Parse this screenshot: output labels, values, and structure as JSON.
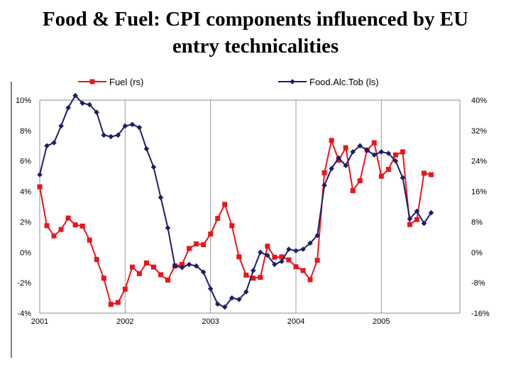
{
  "title": {
    "line1": "Food & Fuel: CPI components influenced by EU",
    "line2": "entry technicalities"
  },
  "chart_data": {
    "type": "line",
    "legend": {
      "placement": "top",
      "entries": [
        "Fuel (rs)",
        "Food.Alc.Tob (ls)"
      ]
    },
    "x_ticks": [
      "2001",
      "2002",
      "2003",
      "2004",
      "2005"
    ],
    "x_range": [
      2001.0,
      2005.92
    ],
    "left_axis": {
      "label": "",
      "range": [
        -4,
        10
      ],
      "ticks": [
        "-4%",
        "-2%",
        "0%",
        "2%",
        "4%",
        "6%",
        "8%",
        "10%"
      ]
    },
    "right_axis": {
      "label": "",
      "range": [
        -16,
        40
      ],
      "ticks": [
        "-16%",
        "-8%",
        "0%",
        "8%",
        "16%",
        "24%",
        "32%",
        "40%"
      ]
    },
    "grid": {
      "vertical": true,
      "horizontal": false
    },
    "series": [
      {
        "name": "Fuel (rs)",
        "axis": "right",
        "color": "#e8161b",
        "marker": "square",
        "start": 2001.0,
        "step_months": 1,
        "values": [
          17.2,
          7.0,
          4.3,
          6.0,
          9.0,
          7.2,
          6.9,
          3.2,
          -1.9,
          -6.8,
          -13.7,
          -13.2,
          -9.7,
          -3.9,
          -5.6,
          -2.8,
          -3.9,
          -5.9,
          -7.3,
          -3.6,
          -3.2,
          1.0,
          2.2,
          2.0,
          4.8,
          8.9,
          12.6,
          7.0,
          -1.2,
          -6.0,
          -6.8,
          -6.6,
          1.6,
          -1.3,
          -1.2,
          -2.0,
          -3.8,
          -4.8,
          -7.2,
          -2.1,
          20.9,
          29.4,
          24.2,
          27.5,
          16.2,
          18.8,
          26.9,
          28.8,
          20.0,
          21.8,
          25.6,
          26.4,
          7.3,
          8.6,
          20.8,
          20.4
        ]
      },
      {
        "name": "Food.Alc.Tob (ls)",
        "axis": "left",
        "color": "#1c1f6b",
        "marker": "diamond",
        "start": 2001.0,
        "step_months": 1,
        "values": [
          5.1,
          7.0,
          7.2,
          8.3,
          9.5,
          10.3,
          9.8,
          9.7,
          9.2,
          7.7,
          7.6,
          7.7,
          8.3,
          8.4,
          8.2,
          6.8,
          5.6,
          3.6,
          1.6,
          -0.9,
          -1.0,
          -0.8,
          -0.9,
          -1.3,
          -2.4,
          -3.4,
          -3.6,
          -3.0,
          -3.1,
          -2.6,
          -1.2,
          0.0,
          -0.2,
          -0.8,
          -0.6,
          0.2,
          0.1,
          0.2,
          0.6,
          1.1,
          4.4,
          5.5,
          6.2,
          5.7,
          6.6,
          7.0,
          6.7,
          6.4,
          6.6,
          6.5,
          6.0,
          4.9,
          2.2,
          2.7,
          1.9,
          2.6
        ]
      }
    ]
  }
}
